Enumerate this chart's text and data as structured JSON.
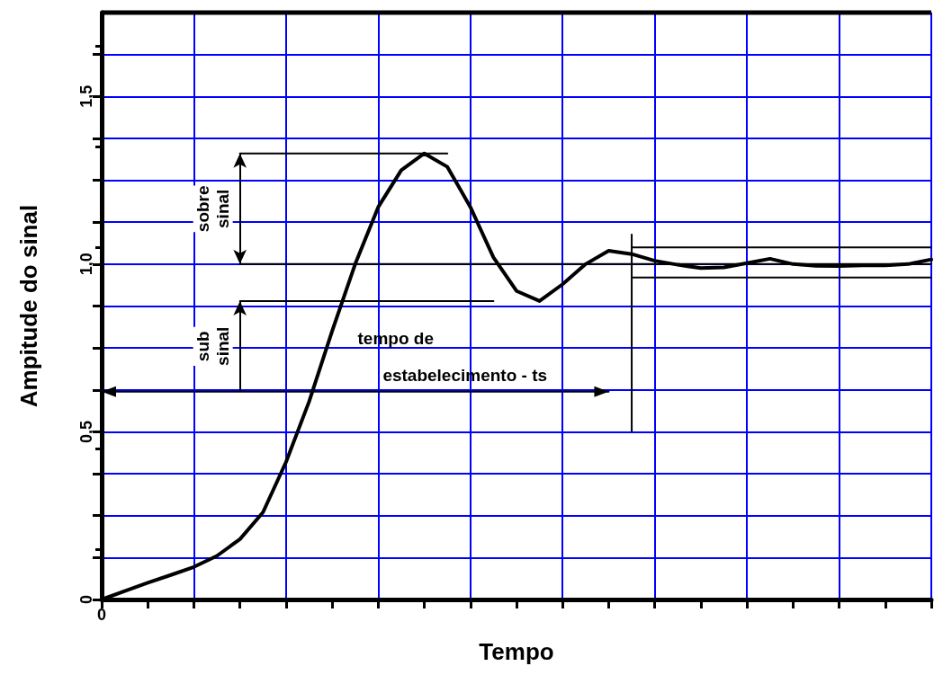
{
  "chart_data": {
    "type": "line",
    "xlabel": "Tempo",
    "ylabel": "Ampitude do sinal",
    "ylim": [
      0,
      1.75
    ],
    "categories": [
      "0",
      null,
      null,
      null,
      null,
      null,
      null,
      null,
      null,
      null,
      null,
      null,
      null,
      null,
      null,
      null,
      null,
      null,
      null,
      null,
      null,
      null,
      null,
      null,
      null,
      null,
      null,
      null,
      null,
      null,
      null,
      null,
      null,
      null,
      null,
      null,
      null
    ],
    "yticks": [
      {
        "value": 0,
        "label": "0"
      },
      {
        "value": 0.125,
        "label": null
      },
      {
        "value": 0.25,
        "label": null
      },
      {
        "value": 0.375,
        "label": null
      },
      {
        "value": 0.5,
        "label": "0,5"
      },
      {
        "value": 0.625,
        "label": null
      },
      {
        "value": 0.75,
        "label": null
      },
      {
        "value": 0.875,
        "label": null
      },
      {
        "value": 1,
        "label": "1,0"
      },
      {
        "value": 1.125,
        "label": null
      },
      {
        "value": 1.25,
        "label": null
      },
      {
        "value": 1.375,
        "label": null
      },
      {
        "value": 1.5,
        "label": "1,5"
      },
      {
        "value": 1.625,
        "label": null
      }
    ],
    "grid": true,
    "marker": "none",
    "line_style": "solid",
    "series": [
      {
        "color": "#000000",
        "values": [
          0,
          0.025,
          0.05,
          0.073,
          0.097,
          0.13,
          0.18,
          0.26,
          0.41,
          0.59,
          0.8,
          1.0,
          1.17,
          1.28,
          1.33,
          1.29,
          1.17,
          1.02,
          0.92,
          0.89,
          0.94,
          1.0,
          1.04,
          1.03,
          1.01,
          0.998,
          0.988,
          0.99,
          1.003,
          1.016,
          1.0,
          0.995,
          0.994,
          0.996,
          0.996,
          1.0,
          1.014
        ]
      },
      {
        "color": "#000000",
        "values": [
          null,
          null,
          null,
          null,
          null,
          null,
          1.33,
          1.33,
          1.33,
          1.33,
          1.33,
          1.33,
          1.33,
          1.33,
          1.33,
          1.33,
          null,
          null,
          null,
          null,
          null,
          null,
          null,
          null,
          null,
          null,
          null,
          null,
          null,
          null,
          null,
          null,
          null,
          null,
          null,
          null,
          null
        ]
      },
      {
        "color": "#000000",
        "values": [
          null,
          null,
          null,
          null,
          null,
          null,
          1.0,
          1.0,
          1.0,
          1.0,
          1.0,
          1.0,
          1.0,
          1.0,
          1.0,
          1.0,
          1.0,
          1.0,
          1.0,
          1.0,
          1.0,
          1.0,
          1.0,
          1.0,
          1.0,
          1.0,
          1.0,
          1.0,
          1.0,
          1.0,
          1.0,
          1.0,
          1.0,
          1.0,
          1.0,
          1.0,
          1.0
        ]
      },
      {
        "color": "#000000",
        "values": [
          null,
          null,
          null,
          null,
          null,
          null,
          0.89,
          0.89,
          0.89,
          0.89,
          0.89,
          0.89,
          0.89,
          0.89,
          0.89,
          0.89,
          0.89,
          0.89,
          null,
          null,
          null,
          null,
          null,
          null,
          null,
          null,
          null,
          null,
          null,
          null,
          null,
          null,
          null,
          null,
          null,
          null,
          null
        ]
      },
      {
        "color": "#000000",
        "values": [
          null,
          null,
          null,
          null,
          null,
          null,
          null,
          null,
          null,
          null,
          null,
          null,
          null,
          null,
          null,
          null,
          null,
          null,
          null,
          null,
          null,
          null,
          null,
          1.05,
          1.05,
          1.05,
          1.05,
          1.05,
          1.05,
          1.05,
          1.05,
          1.05,
          1.05,
          1.05,
          1.05,
          1.05,
          1.05
        ]
      },
      {
        "color": "#000000",
        "values": [
          null,
          null,
          null,
          null,
          null,
          null,
          null,
          null,
          null,
          null,
          null,
          null,
          null,
          null,
          null,
          null,
          null,
          null,
          null,
          null,
          null,
          null,
          null,
          0.96,
          0.96,
          0.96,
          0.96,
          0.96,
          0.96,
          0.96,
          0.96,
          0.96,
          0.96,
          0.96,
          0.96,
          0.96,
          0.96
        ]
      },
      {
        "color": "#000000",
        "values": [
          0.62,
          0.62,
          0.62,
          0.62,
          0.62,
          0.62,
          0.62,
          0.62,
          0.62,
          0.62,
          0.62,
          0.62,
          0.62,
          0.62,
          0.62,
          0.62,
          0.62,
          0.62,
          0.62,
          0.62,
          0.62,
          0.62,
          0.62,
          null,
          null,
          null,
          null,
          null,
          null,
          null,
          null,
          null,
          null,
          null,
          null,
          null,
          null
        ]
      }
    ],
    "annotations": [
      "sobre\nsinal",
      "sub\nsinal",
      "tempo de",
      "estabelecimento - ts"
    ]
  }
}
